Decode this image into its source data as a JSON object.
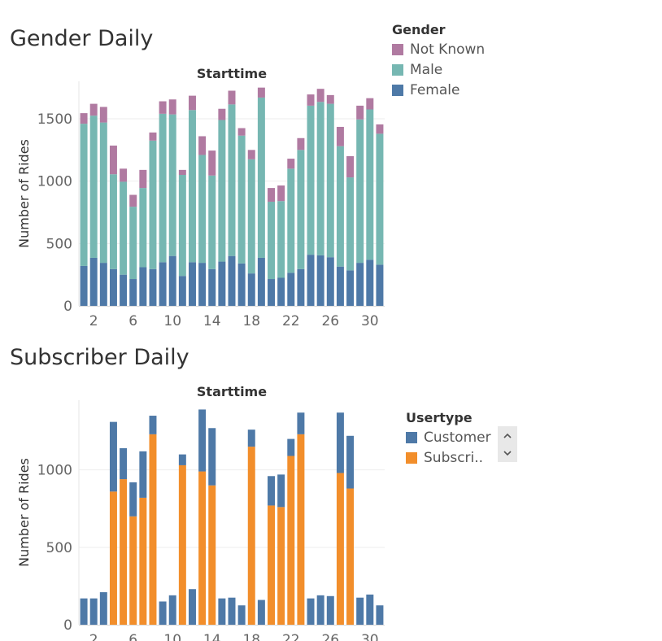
{
  "colors": {
    "not_known": "#B07AA1",
    "male": "#76B7B2",
    "female": "#4E79A7",
    "customer": "#4E79A7",
    "subscriber": "#F28E2B",
    "grid": "#eeeeee",
    "axis_text": "#666666"
  },
  "gender_title": "Gender Daily",
  "subscriber_title": "Subscriber Daily",
  "gender_legend": {
    "title": "Gender",
    "items": [
      "Not Known",
      "Male",
      "Female"
    ]
  },
  "usertype_legend": {
    "title": "Usertype",
    "items": [
      "Customer",
      "Subscri.."
    ],
    "scroll_up_icon": "chevron-up-icon",
    "scroll_down_icon": "chevron-down-icon"
  },
  "chart_data": [
    {
      "type": "bar",
      "stacked": true,
      "title": "Starttime",
      "ylabel": "Number of Rides",
      "xlabel": "",
      "ylim": [
        0,
        1800
      ],
      "yticks": [
        0,
        500,
        1000,
        1500
      ],
      "xticks": [
        2,
        6,
        10,
        14,
        18,
        22,
        26,
        30
      ],
      "categories": [
        1,
        2,
        3,
        4,
        5,
        6,
        7,
        8,
        9,
        10,
        11,
        12,
        13,
        14,
        15,
        16,
        17,
        18,
        19,
        20,
        21,
        22,
        23,
        24,
        25,
        26,
        27,
        28,
        29,
        30,
        31
      ],
      "series": [
        {
          "name": "Female",
          "values": [
            320,
            385,
            345,
            295,
            250,
            215,
            310,
            295,
            350,
            400,
            240,
            350,
            345,
            295,
            355,
            400,
            340,
            260,
            385,
            215,
            225,
            265,
            295,
            410,
            405,
            390,
            315,
            285,
            345,
            370,
            330
          ]
        },
        {
          "name": "Male",
          "values": [
            1140,
            1140,
            1125,
            760,
            745,
            580,
            635,
            1030,
            1190,
            1135,
            810,
            1220,
            865,
            750,
            1135,
            1215,
            1025,
            915,
            1285,
            620,
            615,
            835,
            955,
            1195,
            1230,
            1230,
            965,
            745,
            1150,
            1205,
            1050
          ]
        },
        {
          "name": "Not Known",
          "values": [
            85,
            95,
            125,
            230,
            105,
            95,
            145,
            65,
            100,
            120,
            40,
            115,
            150,
            200,
            90,
            110,
            60,
            75,
            80,
            110,
            125,
            80,
            95,
            90,
            105,
            70,
            155,
            170,
            110,
            90,
            75
          ]
        }
      ]
    },
    {
      "type": "bar",
      "stacked": true,
      "title": "Starttime",
      "ylabel": "Number of Rides",
      "xlabel": "",
      "ylim": [
        0,
        1450
      ],
      "yticks": [
        0,
        500,
        1000
      ],
      "xticks": [
        2,
        6,
        10,
        14,
        18,
        22,
        26,
        30
      ],
      "categories": [
        1,
        2,
        3,
        4,
        5,
        6,
        7,
        8,
        9,
        10,
        11,
        12,
        13,
        14,
        15,
        16,
        17,
        18,
        19,
        20,
        21,
        22,
        23,
        24,
        25,
        26,
        27,
        28,
        29,
        30,
        31
      ],
      "series": [
        {
          "name": "Subscri..",
          "values": [
            0,
            0,
            0,
            860,
            940,
            700,
            820,
            1230,
            0,
            0,
            1030,
            0,
            990,
            900,
            0,
            0,
            0,
            1150,
            0,
            770,
            760,
            1090,
            1230,
            0,
            0,
            0,
            980,
            880,
            0,
            0,
            0
          ]
        },
        {
          "name": "Customer",
          "values": [
            170,
            170,
            210,
            450,
            200,
            220,
            300,
            120,
            150,
            190,
            70,
            230,
            400,
            370,
            170,
            175,
            125,
            110,
            160,
            190,
            210,
            110,
            140,
            170,
            190,
            185,
            390,
            340,
            175,
            195,
            125
          ]
        }
      ]
    }
  ]
}
